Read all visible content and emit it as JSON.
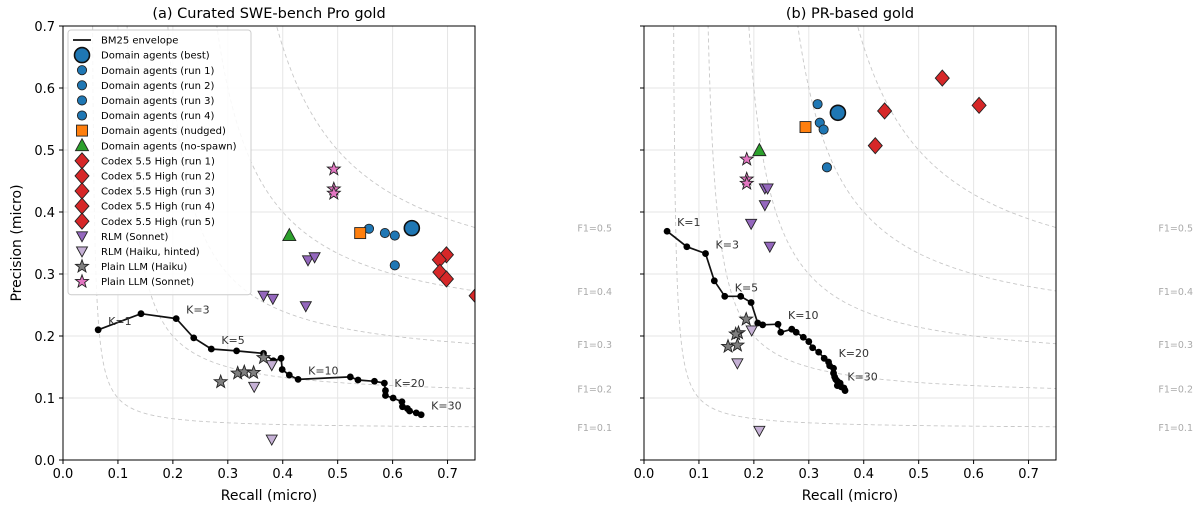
{
  "chart_data": [
    {
      "type": "scatter",
      "title": "(a) Curated SWE-bench Pro gold",
      "xlabel": "Recall (micro)",
      "ylabel": "Precision (micro)",
      "xlim": [
        0,
        0.75
      ],
      "ylim": [
        0,
        0.7
      ],
      "xticks": [
        "0.0",
        "0.1",
        "0.2",
        "0.3",
        "0.4",
        "0.5",
        "0.6",
        "0.7"
      ],
      "yticks": [
        "0.0",
        "0.1",
        "0.2",
        "0.3",
        "0.4",
        "0.5",
        "0.6",
        "0.7"
      ],
      "grid": true,
      "legend_position": "top-left",
      "f1_isolines": [
        {
          "f1": 0.1,
          "label": "F1=0.1"
        },
        {
          "f1": 0.2,
          "label": "F1=0.2"
        },
        {
          "f1": 0.3,
          "label": "F1=0.3"
        },
        {
          "f1": 0.4,
          "label": "F1=0.4"
        },
        {
          "f1": 0.5,
          "label": "F1=0.5"
        }
      ],
      "bm25_envelope": {
        "name": "BM25 envelope",
        "points": [
          [
            0.064,
            0.21
          ],
          [
            0.142,
            0.236
          ],
          [
            0.206,
            0.228
          ],
          [
            0.238,
            0.197
          ],
          [
            0.27,
            0.179
          ],
          [
            0.316,
            0.176
          ],
          [
            0.365,
            0.172
          ],
          [
            0.383,
            0.16
          ],
          [
            0.397,
            0.164
          ],
          [
            0.399,
            0.146
          ],
          [
            0.412,
            0.137
          ],
          [
            0.428,
            0.13
          ],
          [
            0.523,
            0.134
          ],
          [
            0.537,
            0.129
          ],
          [
            0.567,
            0.127
          ],
          [
            0.585,
            0.124
          ],
          [
            0.587,
            0.112
          ],
          [
            0.587,
            0.104
          ],
          [
            0.601,
            0.1
          ],
          [
            0.617,
            0.094
          ],
          [
            0.618,
            0.086
          ],
          [
            0.627,
            0.083
          ],
          [
            0.631,
            0.079
          ],
          [
            0.643,
            0.076
          ],
          [
            0.652,
            0.073
          ]
        ],
        "k_labels": [
          {
            "text": "K=1",
            "x": 0.064,
            "y": 0.21
          },
          {
            "text": "K=3",
            "x": 0.206,
            "y": 0.228
          },
          {
            "text": "K=5",
            "x": 0.27,
            "y": 0.179
          },
          {
            "text": "K=10",
            "x": 0.428,
            "y": 0.13
          },
          {
            "text": "K=20",
            "x": 0.585,
            "y": 0.11
          },
          {
            "text": "K=30",
            "x": 0.652,
            "y": 0.073
          }
        ]
      },
      "series": [
        {
          "name": "Domain agents (best)",
          "marker": "circle-large",
          "color": "#1f77b4",
          "points": [
            [
              0.635,
              0.374
            ]
          ]
        },
        {
          "name": "Domain agents (run 1)",
          "marker": "circle",
          "color": "#1f77b4",
          "points": [
            [
              0.557,
              0.373
            ]
          ]
        },
        {
          "name": "Domain agents (run 2)",
          "marker": "circle",
          "color": "#1f77b4",
          "points": [
            [
              0.586,
              0.366
            ]
          ]
        },
        {
          "name": "Domain agents (run 3)",
          "marker": "circle",
          "color": "#1f77b4",
          "points": [
            [
              0.604,
              0.362
            ]
          ]
        },
        {
          "name": "Domain agents (run 4)",
          "marker": "circle",
          "color": "#1f77b4",
          "points": [
            [
              0.604,
              0.314
            ]
          ]
        },
        {
          "name": "Domain agents (nudged)",
          "marker": "square",
          "color": "#ff7f0e",
          "points": [
            [
              0.541,
              0.366
            ]
          ]
        },
        {
          "name": "Domain agents (no-spawn)",
          "marker": "triangle-up",
          "color": "#2ca02c",
          "points": [
            [
              0.412,
              0.362
            ]
          ]
        },
        {
          "name": "Codex 5.5 High (run 1)",
          "marker": "diamond",
          "color": "#d62728",
          "points": [
            [
              0.698,
              0.331
            ]
          ]
        },
        {
          "name": "Codex 5.5 High (run 2)",
          "marker": "diamond",
          "color": "#d62728",
          "points": [
            [
              0.685,
              0.323
            ]
          ]
        },
        {
          "name": "Codex 5.5 High (run 3)",
          "marker": "diamond",
          "color": "#d62728",
          "points": [
            [
              0.686,
              0.303
            ]
          ]
        },
        {
          "name": "Codex 5.5 High (run 4)",
          "marker": "diamond",
          "color": "#d62728",
          "points": [
            [
              0.698,
              0.292
            ]
          ]
        },
        {
          "name": "Codex 5.5 High (run 5)",
          "marker": "diamond",
          "color": "#d62728",
          "points": [
            [
              0.752,
              0.265
            ]
          ]
        },
        {
          "name": "RLM (Sonnet)",
          "marker": "triangle-down",
          "color": "#9467bd",
          "points": [
            [
              0.365,
              0.265
            ],
            [
              0.382,
              0.26
            ],
            [
              0.442,
              0.248
            ],
            [
              0.446,
              0.322
            ],
            [
              0.458,
              0.327
            ]
          ]
        },
        {
          "name": "RLM (Haiku, hinted)",
          "marker": "triangle-down",
          "color": "#c5b0d5",
          "points": [
            [
              0.38,
              0.153
            ],
            [
              0.348,
              0.118
            ],
            [
              0.38,
              0.033
            ]
          ]
        },
        {
          "name": "Plain LLM (Haiku)",
          "marker": "star",
          "color": "#7f7f7f",
          "points": [
            [
              0.287,
              0.126
            ],
            [
              0.318,
              0.14
            ],
            [
              0.33,
              0.142
            ],
            [
              0.347,
              0.141
            ],
            [
              0.365,
              0.165
            ]
          ]
        },
        {
          "name": "Plain LLM (Sonnet)",
          "marker": "star",
          "color": "#e377c2",
          "points": [
            [
              0.493,
              0.469
            ],
            [
              0.493,
              0.437
            ],
            [
              0.493,
              0.43
            ]
          ]
        }
      ]
    },
    {
      "type": "scatter",
      "title": "(b) PR-based gold",
      "xlabel": "Recall (micro)",
      "ylabel": "",
      "xlim": [
        0,
        0.75
      ],
      "ylim": [
        0,
        0.7
      ],
      "xticks": [
        "0.0",
        "0.1",
        "0.2",
        "0.3",
        "0.4",
        "0.5",
        "0.6",
        "0.7"
      ],
      "grid": true,
      "f1_isolines": [
        {
          "f1": 0.1,
          "label": "F1=0.1"
        },
        {
          "f1": 0.2,
          "label": "F1=0.2"
        },
        {
          "f1": 0.3,
          "label": "F1=0.3"
        },
        {
          "f1": 0.4,
          "label": "F1=0.4"
        },
        {
          "f1": 0.5,
          "label": "F1=0.5"
        }
      ],
      "bm25_envelope": {
        "name": "BM25 envelope",
        "points": [
          [
            0.042,
            0.369
          ],
          [
            0.078,
            0.344
          ],
          [
            0.112,
            0.333
          ],
          [
            0.128,
            0.289
          ],
          [
            0.147,
            0.264
          ],
          [
            0.176,
            0.264
          ],
          [
            0.195,
            0.254
          ],
          [
            0.207,
            0.221
          ],
          [
            0.216,
            0.218
          ],
          [
            0.244,
            0.219
          ],
          [
            0.249,
            0.206
          ],
          [
            0.269,
            0.211
          ],
          [
            0.277,
            0.206
          ],
          [
            0.29,
            0.198
          ],
          [
            0.3,
            0.191
          ],
          [
            0.307,
            0.181
          ],
          [
            0.318,
            0.174
          ],
          [
            0.328,
            0.164
          ],
          [
            0.336,
            0.158
          ],
          [
            0.338,
            0.152
          ],
          [
            0.345,
            0.148
          ],
          [
            0.345,
            0.14
          ],
          [
            0.347,
            0.134
          ],
          [
            0.349,
            0.13
          ],
          [
            0.352,
            0.127
          ],
          [
            0.352,
            0.12
          ],
          [
            0.357,
            0.124
          ],
          [
            0.359,
            0.118
          ],
          [
            0.364,
            0.116
          ],
          [
            0.366,
            0.112
          ]
        ],
        "k_labels": [
          {
            "text": "K=1",
            "x": 0.042,
            "y": 0.369
          },
          {
            "text": "K=3",
            "x": 0.112,
            "y": 0.333
          },
          {
            "text": "K=5",
            "x": 0.147,
            "y": 0.264
          },
          {
            "text": "K=10",
            "x": 0.244,
            "y": 0.219
          },
          {
            "text": "K=20",
            "x": 0.336,
            "y": 0.158
          },
          {
            "text": "K=30",
            "x": 0.352,
            "y": 0.12
          }
        ]
      },
      "series": [
        {
          "name": "Domain agents (best)",
          "marker": "circle-large",
          "color": "#1f77b4",
          "points": [
            [
              0.353,
              0.56
            ]
          ]
        },
        {
          "name": "Domain agents (run 1)",
          "marker": "circle",
          "color": "#1f77b4",
          "points": [
            [
              0.316,
              0.574
            ]
          ]
        },
        {
          "name": "Domain agents (run 2)",
          "marker": "circle",
          "color": "#1f77b4",
          "points": [
            [
              0.32,
              0.544
            ]
          ]
        },
        {
          "name": "Domain agents (run 3)",
          "marker": "circle",
          "color": "#1f77b4",
          "points": [
            [
              0.327,
              0.533
            ]
          ]
        },
        {
          "name": "Domain agents (run 4)",
          "marker": "circle",
          "color": "#1f77b4",
          "points": [
            [
              0.333,
              0.472
            ]
          ]
        },
        {
          "name": "Domain agents (nudged)",
          "marker": "square",
          "color": "#ff7f0e",
          "points": [
            [
              0.294,
              0.537
            ]
          ]
        },
        {
          "name": "Domain agents (no-spawn)",
          "marker": "triangle-up",
          "color": "#2ca02c",
          "points": [
            [
              0.21,
              0.499
            ]
          ]
        },
        {
          "name": "Codex 5.5 High (run 1)",
          "marker": "diamond",
          "color": "#d62728",
          "points": [
            [
              0.438,
              0.563
            ]
          ]
        },
        {
          "name": "Codex 5.5 High (run 2)",
          "marker": "diamond",
          "color": "#d62728",
          "points": [
            [
              0.421,
              0.507
            ]
          ]
        },
        {
          "name": "Codex 5.5 High (run 3)",
          "marker": "diamond",
          "color": "#d62728",
          "points": [
            [
              0.543,
              0.616
            ]
          ]
        },
        {
          "name": "Codex 5.5 High (run 4)",
          "marker": "diamond",
          "color": "#d62728",
          "points": [
            [
              0.61,
              0.572
            ]
          ]
        },
        {
          "name": "RLM (Sonnet)",
          "marker": "triangle-down",
          "color": "#9467bd",
          "points": [
            [
              0.22,
              0.438
            ],
            [
              0.225,
              0.438
            ],
            [
              0.22,
              0.411
            ],
            [
              0.195,
              0.381
            ],
            [
              0.229,
              0.344
            ]
          ]
        },
        {
          "name": "RLM (Haiku, hinted)",
          "marker": "triangle-down",
          "color": "#c5b0d5",
          "points": [
            [
              0.196,
              0.209
            ],
            [
              0.17,
              0.156
            ],
            [
              0.21,
              0.047
            ]
          ]
        },
        {
          "name": "Plain LLM (Haiku)",
          "marker": "star",
          "color": "#7f7f7f",
          "points": [
            [
              0.186,
              0.227
            ],
            [
              0.172,
              0.205
            ],
            [
              0.167,
              0.203
            ],
            [
              0.153,
              0.183
            ],
            [
              0.17,
              0.185
            ]
          ]
        },
        {
          "name": "Plain LLM (Sonnet)",
          "marker": "star",
          "color": "#e377c2",
          "points": [
            [
              0.187,
              0.485
            ],
            [
              0.187,
              0.453
            ],
            [
              0.187,
              0.446
            ]
          ]
        }
      ]
    }
  ]
}
